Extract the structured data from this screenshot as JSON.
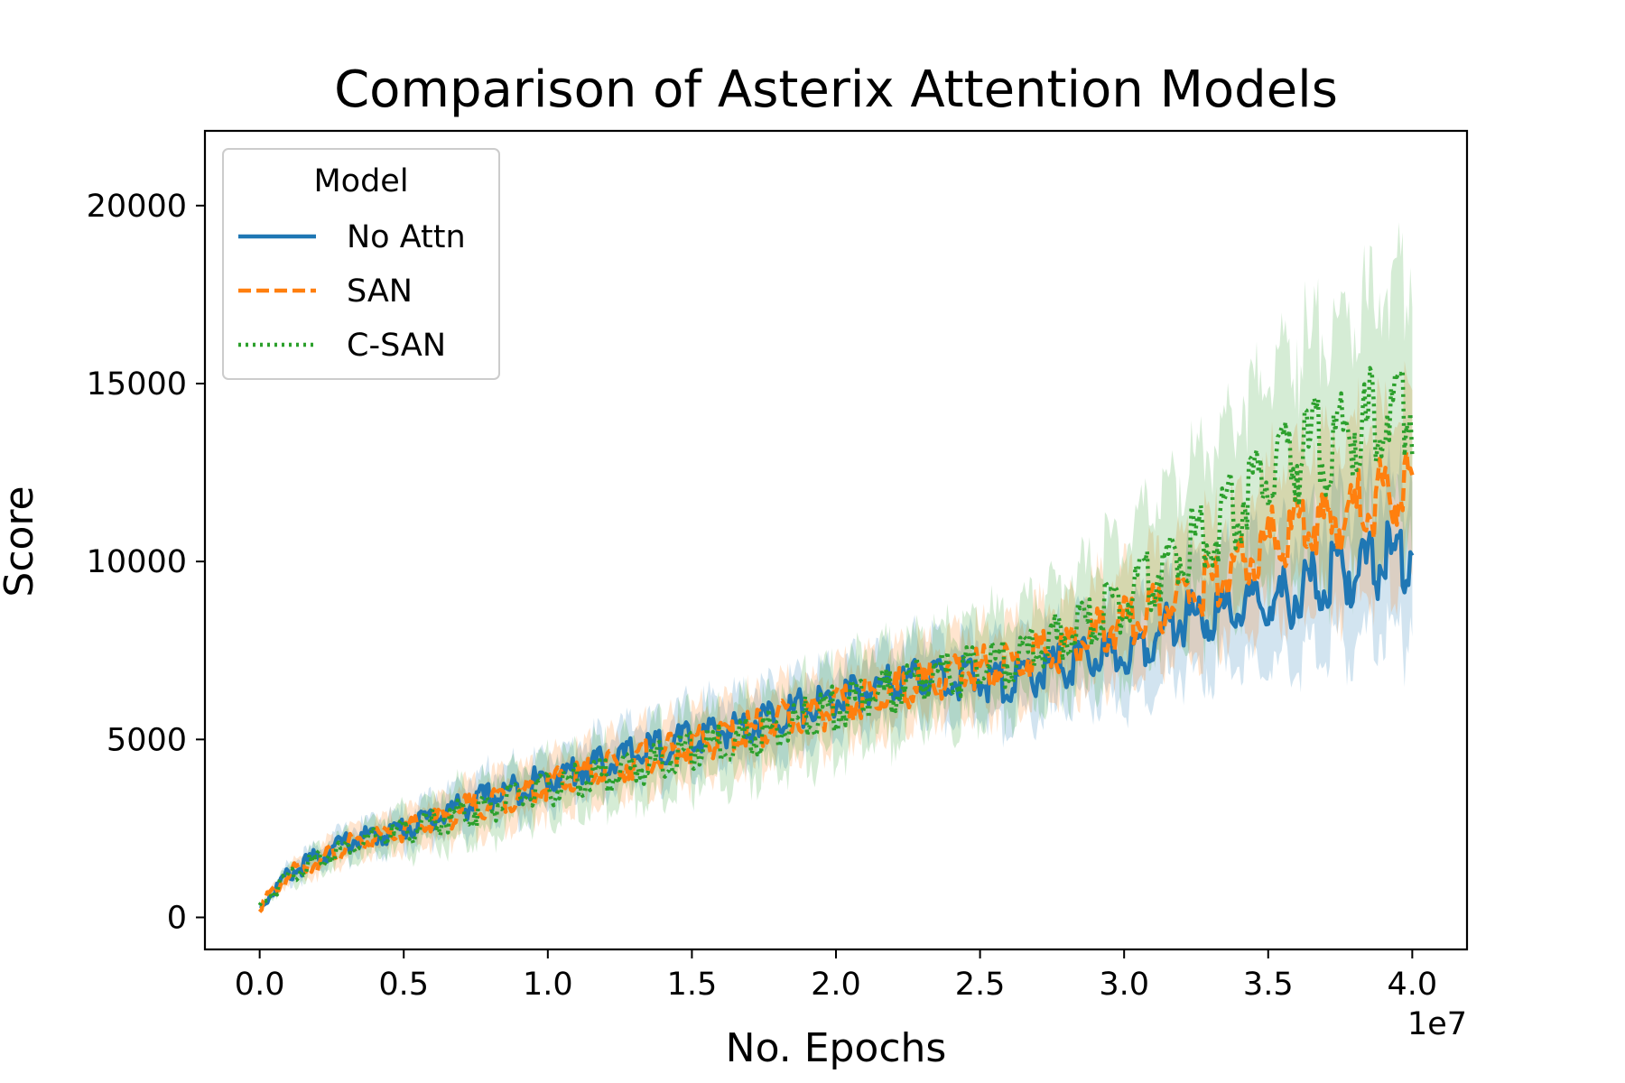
{
  "chart_data": {
    "type": "line",
    "title": "Comparison of Asterix Attention Models",
    "xlabel": "No. Epochs",
    "ylabel": "Score",
    "x_offset_label": "1e7",
    "xlim": [
      -0.19,
      4.19
    ],
    "ylim": [
      -900,
      22100
    ],
    "x_ticks": [
      0.0,
      0.5,
      1.0,
      1.5,
      2.0,
      2.5,
      3.0,
      3.5,
      4.0
    ],
    "x_tick_labels": [
      "0.0",
      "0.5",
      "1.0",
      "1.5",
      "2.0",
      "2.5",
      "3.0",
      "3.5",
      "4.0"
    ],
    "y_ticks": [
      0,
      5000,
      10000,
      15000,
      20000
    ],
    "y_tick_labels": [
      "0",
      "5000",
      "10000",
      "15000",
      "20000"
    ],
    "grid": false,
    "legend": {
      "title": "Model",
      "placement": "top-left"
    },
    "series": [
      {
        "name": "No Attn",
        "color": "#1f77b4",
        "style": "solid",
        "x": [
          0.0,
          0.1,
          0.2,
          0.3,
          0.5,
          0.7,
          1.0,
          1.3,
          1.5,
          1.8,
          2.0,
          2.3,
          2.6,
          2.8,
          3.0,
          3.2,
          3.4,
          3.5,
          3.7,
          3.9,
          4.0
        ],
        "values": [
          300,
          1200,
          1700,
          2100,
          2500,
          3100,
          3900,
          4600,
          5000,
          5700,
          6100,
          6800,
          6600,
          7100,
          7400,
          8400,
          8600,
          8800,
          9500,
          10000,
          10300
        ],
        "band": [
          0,
          300,
          400,
          500,
          600,
          800,
          900,
          1000,
          1100,
          1200,
          1200,
          1300,
          1400,
          1500,
          1600,
          1800,
          2000,
          2200,
          2400,
          2600,
          2800
        ]
      },
      {
        "name": "SAN",
        "color": "#ff7f0e",
        "style": "dashed",
        "x": [
          0.0,
          0.1,
          0.2,
          0.3,
          0.5,
          0.7,
          1.0,
          1.3,
          1.5,
          1.8,
          2.0,
          2.3,
          2.6,
          2.8,
          3.0,
          3.2,
          3.4,
          3.5,
          3.7,
          3.9,
          4.0
        ],
        "values": [
          300,
          1200,
          1600,
          2000,
          2400,
          3000,
          3700,
          4400,
          4800,
          5500,
          5900,
          6600,
          7200,
          7600,
          8300,
          9000,
          9800,
          10600,
          11200,
          11800,
          12200
        ],
        "band": [
          0,
          300,
          400,
          500,
          600,
          800,
          900,
          1000,
          1100,
          1200,
          1200,
          1300,
          1400,
          1500,
          1700,
          1900,
          2200,
          2400,
          2700,
          2900,
          3000
        ]
      },
      {
        "name": "C-SAN",
        "color": "#2ca02c",
        "style": "dotted",
        "x": [
          0.0,
          0.1,
          0.2,
          0.3,
          0.5,
          0.7,
          1.0,
          1.3,
          1.5,
          1.8,
          2.0,
          2.3,
          2.6,
          2.8,
          3.0,
          3.2,
          3.4,
          3.5,
          3.7,
          3.9,
          4.0
        ],
        "values": [
          300,
          1200,
          1600,
          2000,
          2400,
          2900,
          3600,
          4200,
          4700,
          5300,
          5900,
          6700,
          7200,
          7900,
          8900,
          10300,
          11600,
          12600,
          13300,
          14100,
          14600
        ],
        "band": [
          0,
          300,
          400,
          500,
          700,
          900,
          1000,
          1100,
          1200,
          1400,
          1500,
          1600,
          1700,
          1900,
          2200,
          2600,
          3100,
          3500,
          3900,
          4200,
          4400
        ]
      }
    ]
  }
}
